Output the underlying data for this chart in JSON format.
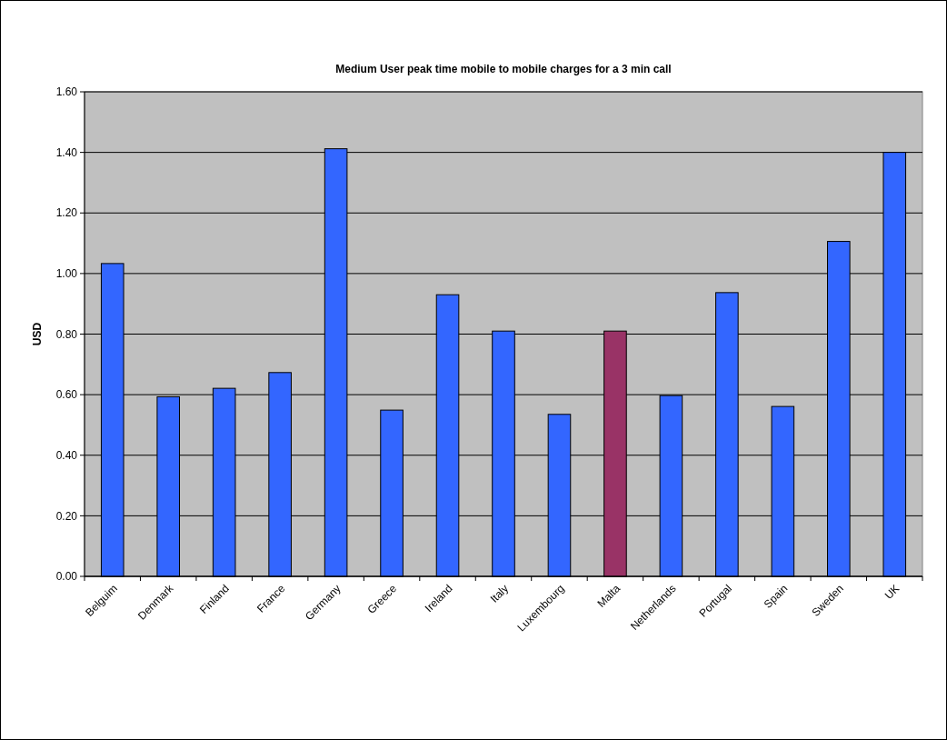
{
  "chart_data": {
    "type": "bar",
    "title": "Medium User peak time mobile to mobile charges for a 3 min call",
    "ylabel": "USD",
    "categories": [
      "Belguim",
      "Denmark",
      "Finland",
      "France",
      "Germany",
      "Greece",
      "Ireland",
      "Italy",
      "Luxembourg",
      "Malta",
      "Netherlands",
      "Portugal",
      "Spain",
      "Sweden",
      "UK"
    ],
    "values": [
      1.033,
      0.593,
      0.621,
      0.673,
      1.412,
      0.549,
      0.93,
      0.81,
      0.535,
      0.81,
      0.597,
      0.937,
      0.561,
      1.106,
      1.4
    ],
    "colors": [
      "#3366ff",
      "#3366ff",
      "#3366ff",
      "#3366ff",
      "#3366ff",
      "#3366ff",
      "#3366ff",
      "#3366ff",
      "#3366ff",
      "#993366",
      "#3366ff",
      "#3366ff",
      "#3366ff",
      "#3366ff",
      "#3366ff"
    ],
    "ylim": [
      0,
      1.6
    ],
    "yticks": [
      {
        "value": 0,
        "label": "0.00"
      },
      {
        "value": 0.2,
        "label": "0.20"
      },
      {
        "value": 0.4,
        "label": "0.40"
      },
      {
        "value": 0.6,
        "label": "0.60"
      },
      {
        "value": 0.8,
        "label": "0.80"
      },
      {
        "value": 1,
        "label": "1.00"
      },
      {
        "value": 1.2,
        "label": "1.20"
      },
      {
        "value": 1.4,
        "label": "1.40"
      },
      {
        "value": 1.6,
        "label": "1.60"
      }
    ],
    "grid": "y"
  }
}
